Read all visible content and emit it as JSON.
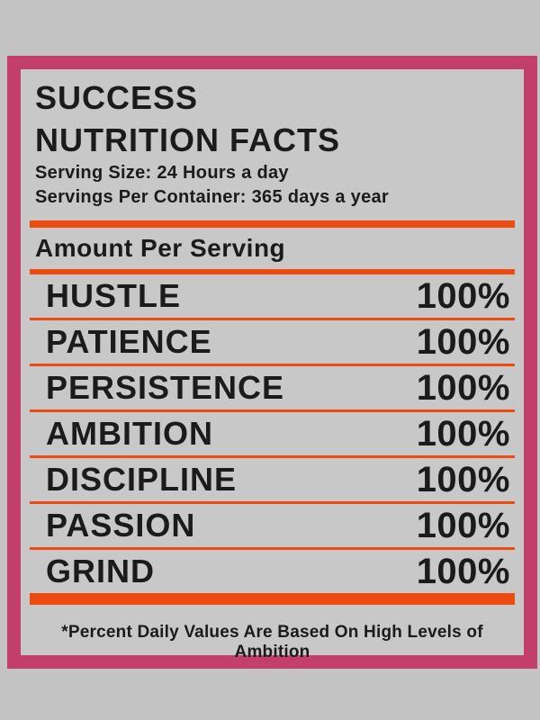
{
  "label": {
    "title_line1": "SUCCESS",
    "title_line2": "NUTRITION FACTS",
    "serving_size": "Serving Size: 24 Hours a day",
    "servings_per_container": "Servings Per Container: 365 days a year",
    "amount_heading": "Amount Per Serving",
    "rows": [
      {
        "label": "HUSTLE",
        "value": "100%"
      },
      {
        "label": "PATIENCE",
        "value": "100%"
      },
      {
        "label": "PERSISTENCE",
        "value": "100%"
      },
      {
        "label": "AMBITION",
        "value": "100%"
      },
      {
        "label": "DISCIPLINE",
        "value": "100%"
      },
      {
        "label": "PASSION",
        "value": "100%"
      },
      {
        "label": "GRIND",
        "value": "100%"
      }
    ],
    "footnote": "*Percent Daily Values Are Based On High Levels of Ambition"
  },
  "colors": {
    "page_background": "#c4c3c4",
    "panel_background": "#c9c8c9",
    "frame_pink": "#c23f6b",
    "divider_orange": "#ee4b10",
    "text": "#1b1b1b"
  }
}
